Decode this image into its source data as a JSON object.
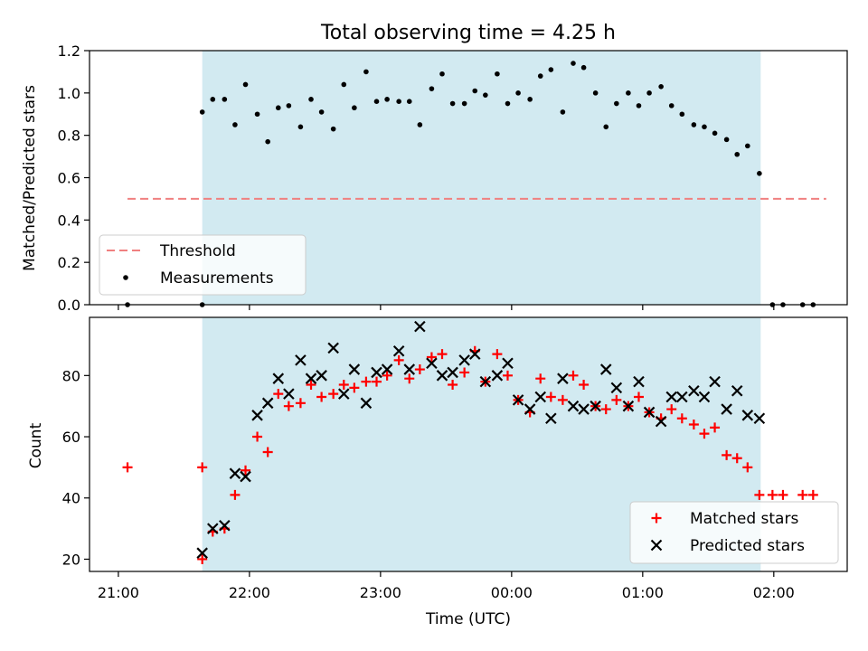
{
  "chart_data": [
    {
      "type": "scatter",
      "title": "Total observing time = 4.25 h",
      "xlabel": "",
      "ylabel": "Matched/Predicted stars",
      "x_unit": "hours since 21:00 UTC",
      "ylim": [
        0,
        1.2
      ],
      "yticks": [
        "0.0",
        "0.2",
        "0.4",
        "0.6",
        "0.8",
        "1.0",
        "1.2"
      ],
      "shaded_region": {
        "x_start": 0.64,
        "x_end": 4.9,
        "color": "#add8e6"
      },
      "legend": {
        "position": "lower left",
        "entries": [
          "Threshold",
          "Measurements"
        ]
      },
      "series": [
        {
          "name": "Threshold",
          "kind": "dashed-line",
          "color": "#f08080",
          "points": [
            [
              0.07,
              0.5
            ],
            [
              5.4,
              0.5
            ]
          ]
        },
        {
          "name": "Measurements",
          "kind": "dot",
          "color": "#000000",
          "points": [
            [
              0.07,
              0.0
            ],
            [
              0.64,
              0.0
            ],
            [
              0.64,
              0.91
            ],
            [
              0.72,
              0.97
            ],
            [
              0.81,
              0.97
            ],
            [
              0.89,
              0.85
            ],
            [
              0.97,
              1.04
            ],
            [
              1.06,
              0.9
            ],
            [
              1.14,
              0.77
            ],
            [
              1.22,
              0.93
            ],
            [
              1.3,
              0.94
            ],
            [
              1.39,
              0.84
            ],
            [
              1.47,
              0.97
            ],
            [
              1.55,
              0.91
            ],
            [
              1.64,
              0.83
            ],
            [
              1.72,
              1.04
            ],
            [
              1.8,
              0.93
            ],
            [
              1.89,
              1.1
            ],
            [
              1.97,
              0.96
            ],
            [
              2.05,
              0.97
            ],
            [
              2.14,
              0.96
            ],
            [
              2.22,
              0.96
            ],
            [
              2.3,
              0.85
            ],
            [
              2.39,
              1.02
            ],
            [
              2.47,
              1.09
            ],
            [
              2.55,
              0.95
            ],
            [
              2.64,
              0.95
            ],
            [
              2.72,
              1.01
            ],
            [
              2.8,
              0.99
            ],
            [
              2.89,
              1.09
            ],
            [
              2.97,
              0.95
            ],
            [
              3.05,
              1.0
            ],
            [
              3.14,
              0.97
            ],
            [
              3.22,
              1.08
            ],
            [
              3.3,
              1.11
            ],
            [
              3.39,
              0.91
            ],
            [
              3.47,
              1.14
            ],
            [
              3.55,
              1.12
            ],
            [
              3.64,
              1.0
            ],
            [
              3.72,
              0.84
            ],
            [
              3.8,
              0.95
            ],
            [
              3.89,
              1.0
            ],
            [
              3.97,
              0.94
            ],
            [
              4.05,
              1.0
            ],
            [
              4.14,
              1.03
            ],
            [
              4.22,
              0.94
            ],
            [
              4.3,
              0.9
            ],
            [
              4.39,
              0.85
            ],
            [
              4.47,
              0.84
            ],
            [
              4.55,
              0.81
            ],
            [
              4.64,
              0.78
            ],
            [
              4.72,
              0.71
            ],
            [
              4.8,
              0.75
            ],
            [
              4.89,
              0.62
            ],
            [
              4.99,
              0.0
            ],
            [
              5.07,
              0.0
            ],
            [
              5.22,
              0.0
            ],
            [
              5.3,
              0.0
            ]
          ]
        }
      ]
    },
    {
      "type": "scatter",
      "title": "",
      "xlabel": "Time (UTC)",
      "ylabel": "Count",
      "x_unit": "hours since 21:00 UTC",
      "xlim_labels": [
        "21:00",
        "22:00",
        "23:00",
        "00:00",
        "01:00",
        "02:00"
      ],
      "ylim": [
        16,
        99
      ],
      "yticks": [
        "20",
        "40",
        "60",
        "80"
      ],
      "shaded_region": {
        "x_start": 0.64,
        "x_end": 4.9,
        "color": "#add8e6"
      },
      "legend": {
        "position": "lower right",
        "entries": [
          "Matched stars",
          "Predicted stars"
        ]
      },
      "series": [
        {
          "name": "Matched stars",
          "marker": "plus",
          "color": "#ff0000",
          "points": [
            [
              0.07,
              50
            ],
            [
              0.64,
              50
            ],
            [
              0.64,
              20
            ],
            [
              0.72,
              29
            ],
            [
              0.81,
              30
            ],
            [
              0.89,
              41
            ],
            [
              0.97,
              49
            ],
            [
              1.06,
              60
            ],
            [
              1.14,
              55
            ],
            [
              1.22,
              74
            ],
            [
              1.3,
              70
            ],
            [
              1.39,
              71
            ],
            [
              1.47,
              77
            ],
            [
              1.55,
              73
            ],
            [
              1.64,
              74
            ],
            [
              1.72,
              77
            ],
            [
              1.8,
              76
            ],
            [
              1.89,
              78
            ],
            [
              1.97,
              78
            ],
            [
              2.05,
              80
            ],
            [
              2.14,
              85
            ],
            [
              2.22,
              79
            ],
            [
              2.3,
              82
            ],
            [
              2.39,
              86
            ],
            [
              2.47,
              87
            ],
            [
              2.55,
              77
            ],
            [
              2.64,
              81
            ],
            [
              2.72,
              88
            ],
            [
              2.8,
              78
            ],
            [
              2.89,
              87
            ],
            [
              2.97,
              80
            ],
            [
              3.05,
              72
            ],
            [
              3.14,
              68
            ],
            [
              3.22,
              79
            ],
            [
              3.3,
              73
            ],
            [
              3.39,
              72
            ],
            [
              3.47,
              80
            ],
            [
              3.55,
              77
            ],
            [
              3.64,
              70
            ],
            [
              3.72,
              69
            ],
            [
              3.8,
              72
            ],
            [
              3.89,
              70
            ],
            [
              3.97,
              73
            ],
            [
              4.05,
              68
            ],
            [
              4.14,
              66
            ],
            [
              4.22,
              69
            ],
            [
              4.3,
              66
            ],
            [
              4.39,
              64
            ],
            [
              4.47,
              61
            ],
            [
              4.55,
              63
            ],
            [
              4.64,
              54
            ],
            [
              4.72,
              53
            ],
            [
              4.8,
              50
            ],
            [
              4.89,
              41
            ],
            [
              4.99,
              41
            ],
            [
              5.07,
              41
            ],
            [
              5.22,
              41
            ],
            [
              5.3,
              41
            ]
          ]
        },
        {
          "name": "Predicted stars",
          "marker": "x",
          "color": "#000000",
          "points": [
            [
              0.64,
              22
            ],
            [
              0.72,
              30
            ],
            [
              0.81,
              31
            ],
            [
              0.89,
              48
            ],
            [
              0.97,
              47
            ],
            [
              1.06,
              67
            ],
            [
              1.14,
              71
            ],
            [
              1.22,
              79
            ],
            [
              1.3,
              74
            ],
            [
              1.39,
              85
            ],
            [
              1.47,
              79
            ],
            [
              1.55,
              80
            ],
            [
              1.64,
              89
            ],
            [
              1.72,
              74
            ],
            [
              1.8,
              82
            ],
            [
              1.89,
              71
            ],
            [
              1.97,
              81
            ],
            [
              2.05,
              82
            ],
            [
              2.14,
              88
            ],
            [
              2.22,
              82
            ],
            [
              2.3,
              96
            ],
            [
              2.39,
              84
            ],
            [
              2.47,
              80
            ],
            [
              2.55,
              81
            ],
            [
              2.64,
              85
            ],
            [
              2.72,
              87
            ],
            [
              2.8,
              78
            ],
            [
              2.89,
              80
            ],
            [
              2.97,
              84
            ],
            [
              3.05,
              72
            ],
            [
              3.14,
              69
            ],
            [
              3.22,
              73
            ],
            [
              3.3,
              66
            ],
            [
              3.39,
              79
            ],
            [
              3.47,
              70
            ],
            [
              3.55,
              69
            ],
            [
              3.64,
              70
            ],
            [
              3.72,
              82
            ],
            [
              3.8,
              76
            ],
            [
              3.89,
              70
            ],
            [
              3.97,
              78
            ],
            [
              4.05,
              68
            ],
            [
              4.14,
              65
            ],
            [
              4.22,
              73
            ],
            [
              4.3,
              73
            ],
            [
              4.39,
              75
            ],
            [
              4.47,
              73
            ],
            [
              4.55,
              78
            ],
            [
              4.64,
              69
            ],
            [
              4.72,
              75
            ],
            [
              4.8,
              67
            ],
            [
              4.89,
              66
            ]
          ]
        }
      ]
    }
  ]
}
